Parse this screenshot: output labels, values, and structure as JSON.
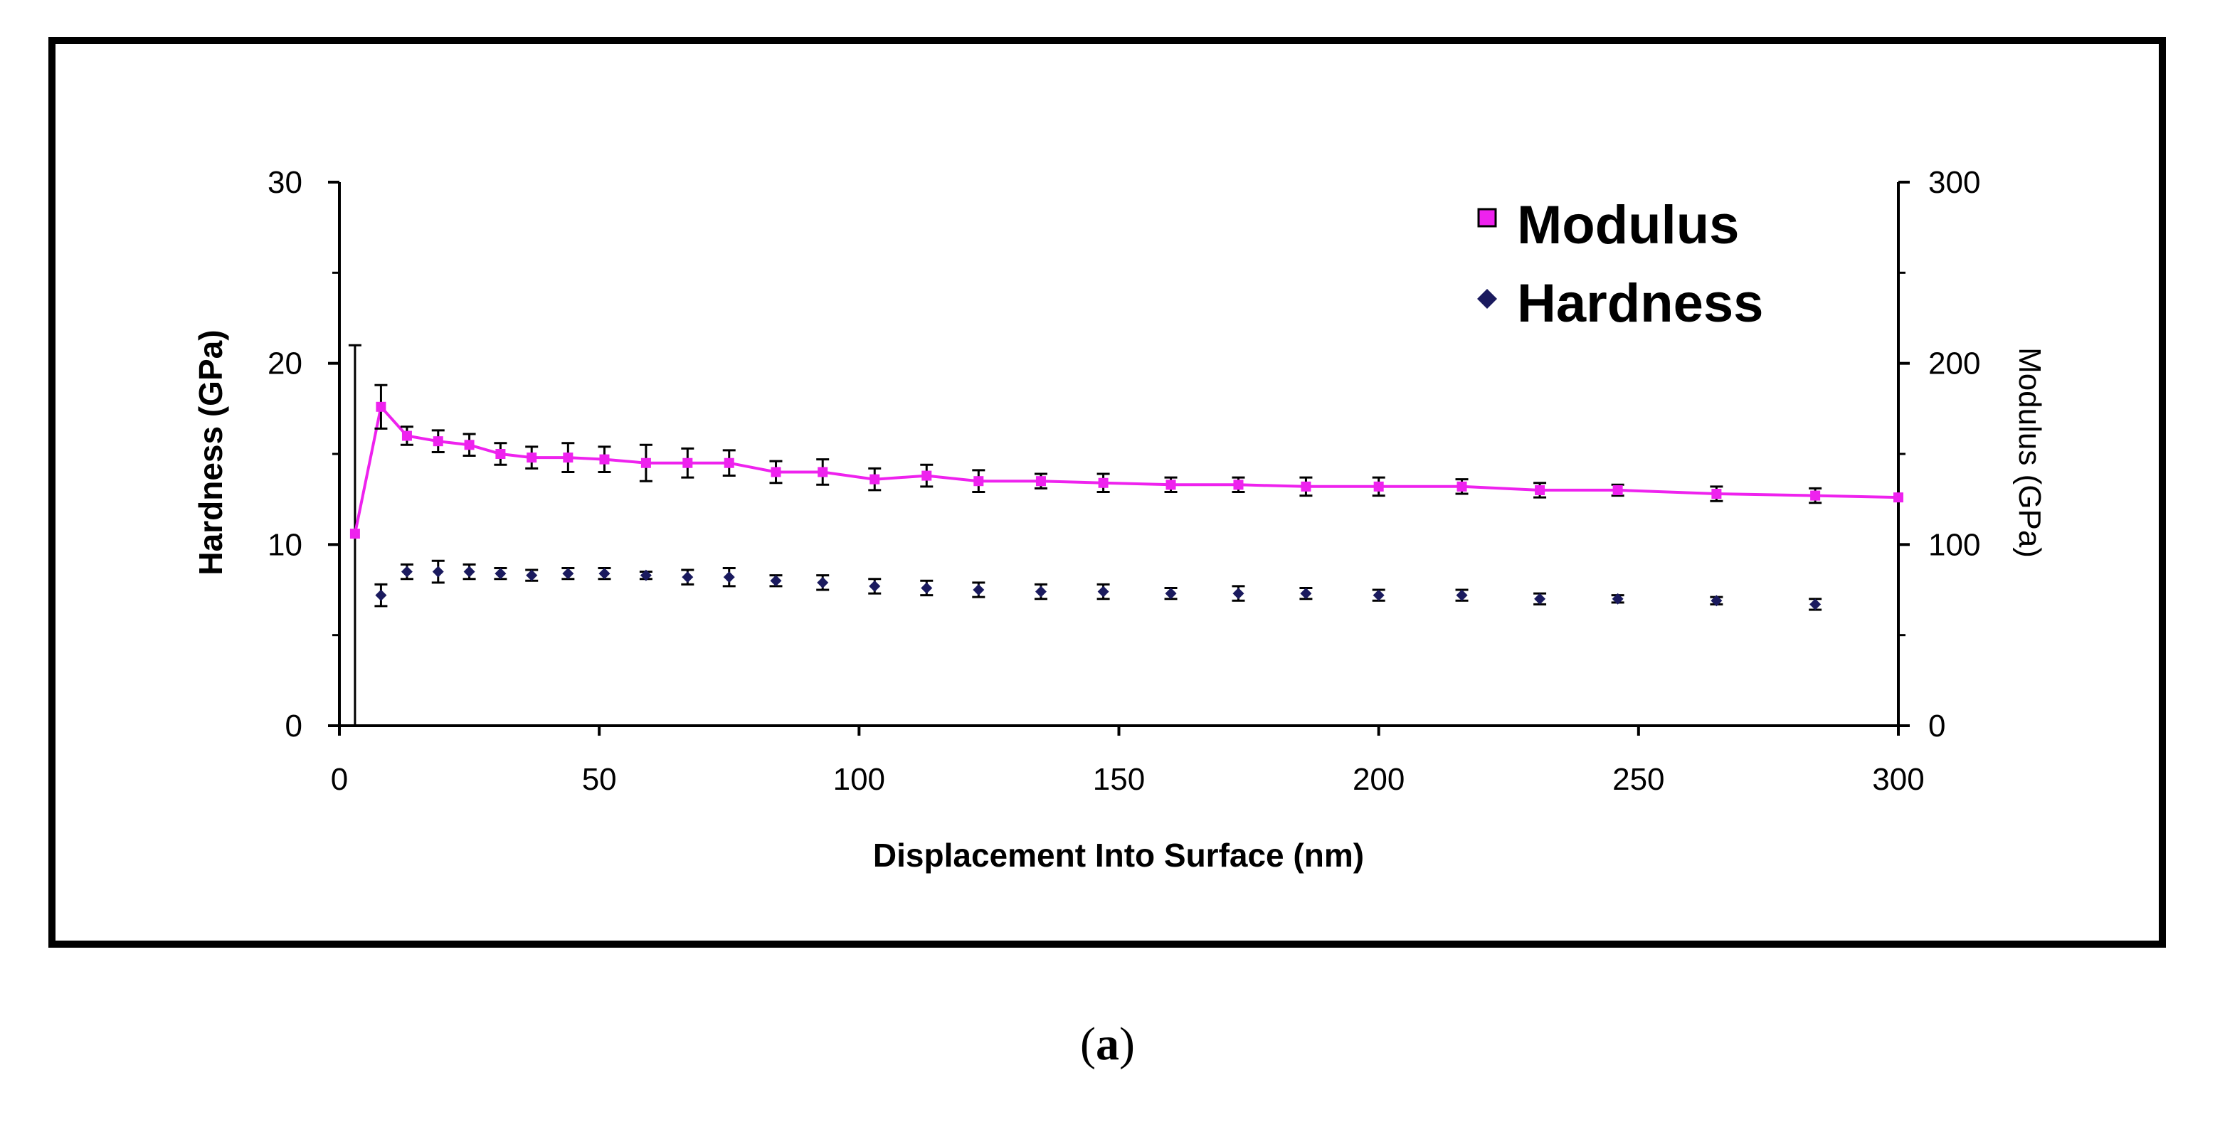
{
  "caption": {
    "open": "(",
    "letter": "a",
    "close": ")"
  },
  "chart_data": {
    "type": "scatter",
    "xlabel": "Displacement Into Surface (nm)",
    "ylabel_left": "Hardness (GPa)",
    "ylabel_right": "Modulus (GPa)",
    "xlim": [
      0,
      300
    ],
    "ylim_left": [
      0,
      30
    ],
    "ylim_right": [
      0,
      300
    ],
    "x_ticks": [
      0,
      50,
      100,
      150,
      200,
      250,
      300
    ],
    "y_ticks_left": [
      0,
      10,
      20,
      30
    ],
    "y_ticks_right": [
      0,
      100,
      200,
      300
    ],
    "grid": false,
    "legend_position": "top-right",
    "colors": {
      "modulus": "#ee22ee",
      "hardness": "#1a1a5e",
      "error": "#000000",
      "axis": "#000000"
    },
    "series": [
      {
        "name": "Modulus",
        "axis": "right",
        "style": "line-marker",
        "marker": "square",
        "x": [
          3,
          8,
          13,
          19,
          25,
          31,
          37,
          44,
          51,
          59,
          67,
          75,
          84,
          93,
          103,
          113,
          123,
          135,
          147,
          160,
          173,
          186,
          200,
          216,
          231,
          246,
          265,
          284,
          300
        ],
        "y": [
          106,
          176,
          160,
          157,
          155,
          150,
          148,
          148,
          147,
          145,
          145,
          145,
          140,
          140,
          136,
          138,
          135,
          135,
          134,
          133,
          133,
          132,
          132,
          132,
          130,
          130,
          128,
          127,
          126
        ],
        "err": [
          0,
          12,
          5,
          6,
          6,
          6,
          6,
          8,
          7,
          10,
          8,
          7,
          6,
          7,
          6,
          6,
          6,
          4,
          5,
          4,
          4,
          5,
          5,
          4,
          4,
          3,
          4,
          4,
          0
        ]
      },
      {
        "name": "Hardness",
        "axis": "left",
        "style": "marker",
        "marker": "diamond",
        "x": [
          3,
          8,
          13,
          19,
          25,
          31,
          37,
          44,
          51,
          59,
          67,
          75,
          84,
          93,
          103,
          113,
          123,
          135,
          147,
          160,
          173,
          186,
          200,
          216,
          231,
          246,
          265,
          284
        ],
        "y": [
          10.5,
          7.2,
          8.5,
          8.5,
          8.5,
          8.4,
          8.3,
          8.4,
          8.4,
          8.3,
          8.2,
          8.2,
          8.0,
          7.9,
          7.7,
          7.6,
          7.5,
          7.4,
          7.4,
          7.3,
          7.3,
          7.3,
          7.2,
          7.2,
          7.0,
          7.0,
          6.9,
          6.7
        ],
        "err": [
          10.5,
          0.6,
          0.4,
          0.6,
          0.4,
          0.3,
          0.3,
          0.3,
          0.3,
          0.2,
          0.4,
          0.5,
          0.3,
          0.4,
          0.4,
          0.4,
          0.4,
          0.4,
          0.4,
          0.3,
          0.4,
          0.3,
          0.3,
          0.3,
          0.3,
          0.2,
          0.2,
          0.3
        ]
      }
    ]
  }
}
